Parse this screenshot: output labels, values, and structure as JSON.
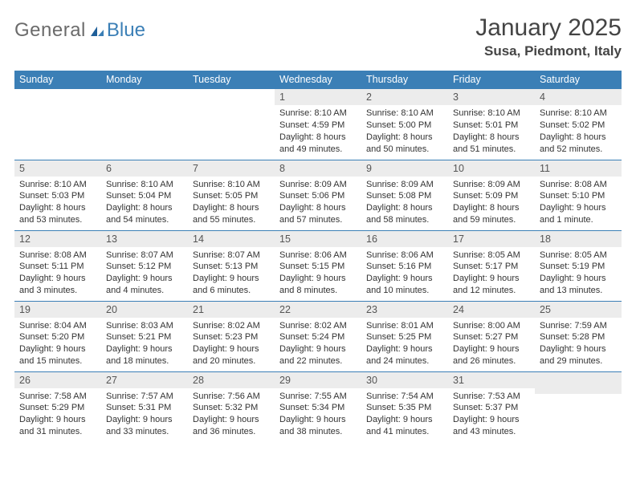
{
  "brand": {
    "gray": "General",
    "blue": "Blue"
  },
  "header": {
    "title": "January 2025",
    "location": "Susa, Piedmont, Italy"
  },
  "colors": {
    "header_bg": "#3b7fb6",
    "header_fg": "#ffffff",
    "daynum_bg": "#ececec",
    "border": "#3b7fb6",
    "text": "#333333",
    "title": "#444444"
  },
  "calendar": {
    "columns": [
      "Sunday",
      "Monday",
      "Tuesday",
      "Wednesday",
      "Thursday",
      "Friday",
      "Saturday"
    ],
    "type": "table",
    "rows": [
      [
        null,
        null,
        null,
        {
          "n": "1",
          "sunrise": "8:10 AM",
          "sunset": "4:59 PM",
          "day_h": 8,
          "day_m": 49
        },
        {
          "n": "2",
          "sunrise": "8:10 AM",
          "sunset": "5:00 PM",
          "day_h": 8,
          "day_m": 50
        },
        {
          "n": "3",
          "sunrise": "8:10 AM",
          "sunset": "5:01 PM",
          "day_h": 8,
          "day_m": 51
        },
        {
          "n": "4",
          "sunrise": "8:10 AM",
          "sunset": "5:02 PM",
          "day_h": 8,
          "day_m": 52
        }
      ],
      [
        {
          "n": "5",
          "sunrise": "8:10 AM",
          "sunset": "5:03 PM",
          "day_h": 8,
          "day_m": 53
        },
        {
          "n": "6",
          "sunrise": "8:10 AM",
          "sunset": "5:04 PM",
          "day_h": 8,
          "day_m": 54
        },
        {
          "n": "7",
          "sunrise": "8:10 AM",
          "sunset": "5:05 PM",
          "day_h": 8,
          "day_m": 55
        },
        {
          "n": "8",
          "sunrise": "8:09 AM",
          "sunset": "5:06 PM",
          "day_h": 8,
          "day_m": 57
        },
        {
          "n": "9",
          "sunrise": "8:09 AM",
          "sunset": "5:08 PM",
          "day_h": 8,
          "day_m": 58
        },
        {
          "n": "10",
          "sunrise": "8:09 AM",
          "sunset": "5:09 PM",
          "day_h": 8,
          "day_m": 59
        },
        {
          "n": "11",
          "sunrise": "8:08 AM",
          "sunset": "5:10 PM",
          "day_h": 9,
          "day_m": 1
        }
      ],
      [
        {
          "n": "12",
          "sunrise": "8:08 AM",
          "sunset": "5:11 PM",
          "day_h": 9,
          "day_m": 3
        },
        {
          "n": "13",
          "sunrise": "8:07 AM",
          "sunset": "5:12 PM",
          "day_h": 9,
          "day_m": 4
        },
        {
          "n": "14",
          "sunrise": "8:07 AM",
          "sunset": "5:13 PM",
          "day_h": 9,
          "day_m": 6
        },
        {
          "n": "15",
          "sunrise": "8:06 AM",
          "sunset": "5:15 PM",
          "day_h": 9,
          "day_m": 8
        },
        {
          "n": "16",
          "sunrise": "8:06 AM",
          "sunset": "5:16 PM",
          "day_h": 9,
          "day_m": 10
        },
        {
          "n": "17",
          "sunrise": "8:05 AM",
          "sunset": "5:17 PM",
          "day_h": 9,
          "day_m": 12
        },
        {
          "n": "18",
          "sunrise": "8:05 AM",
          "sunset": "5:19 PM",
          "day_h": 9,
          "day_m": 13
        }
      ],
      [
        {
          "n": "19",
          "sunrise": "8:04 AM",
          "sunset": "5:20 PM",
          "day_h": 9,
          "day_m": 15
        },
        {
          "n": "20",
          "sunrise": "8:03 AM",
          "sunset": "5:21 PM",
          "day_h": 9,
          "day_m": 18
        },
        {
          "n": "21",
          "sunrise": "8:02 AM",
          "sunset": "5:23 PM",
          "day_h": 9,
          "day_m": 20
        },
        {
          "n": "22",
          "sunrise": "8:02 AM",
          "sunset": "5:24 PM",
          "day_h": 9,
          "day_m": 22
        },
        {
          "n": "23",
          "sunrise": "8:01 AM",
          "sunset": "5:25 PM",
          "day_h": 9,
          "day_m": 24
        },
        {
          "n": "24",
          "sunrise": "8:00 AM",
          "sunset": "5:27 PM",
          "day_h": 9,
          "day_m": 26
        },
        {
          "n": "25",
          "sunrise": "7:59 AM",
          "sunset": "5:28 PM",
          "day_h": 9,
          "day_m": 29
        }
      ],
      [
        {
          "n": "26",
          "sunrise": "7:58 AM",
          "sunset": "5:29 PM",
          "day_h": 9,
          "day_m": 31
        },
        {
          "n": "27",
          "sunrise": "7:57 AM",
          "sunset": "5:31 PM",
          "day_h": 9,
          "day_m": 33
        },
        {
          "n": "28",
          "sunrise": "7:56 AM",
          "sunset": "5:32 PM",
          "day_h": 9,
          "day_m": 36
        },
        {
          "n": "29",
          "sunrise": "7:55 AM",
          "sunset": "5:34 PM",
          "day_h": 9,
          "day_m": 38
        },
        {
          "n": "30",
          "sunrise": "7:54 AM",
          "sunset": "5:35 PM",
          "day_h": 9,
          "day_m": 41
        },
        {
          "n": "31",
          "sunrise": "7:53 AM",
          "sunset": "5:37 PM",
          "day_h": 9,
          "day_m": 43
        },
        null
      ]
    ],
    "labels": {
      "sunrise": "Sunrise:",
      "sunset": "Sunset:",
      "daylight_prefix": "Daylight:",
      "hours_word": "hours",
      "and_word": "and",
      "minutes_word": "minutes.",
      "minute_word": "minute."
    }
  }
}
